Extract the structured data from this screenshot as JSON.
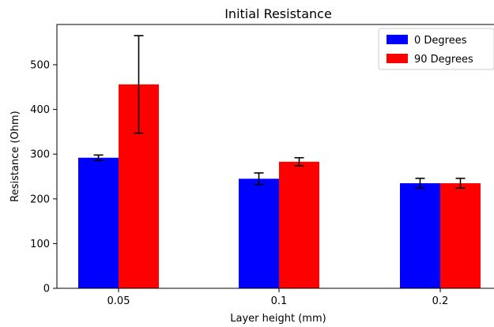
{
  "chart_data": {
    "type": "bar",
    "title": "Initial Resistance",
    "xlabel": "Layer height (mm)",
    "ylabel": "Resistance (Ohm)",
    "categories": [
      "0.05",
      "0.1",
      "0.2"
    ],
    "series": [
      {
        "name": "0 Degrees",
        "color": "#0000ff",
        "values": [
          292,
          245,
          235
        ],
        "errors": [
          6,
          13,
          11
        ]
      },
      {
        "name": "90 Degrees",
        "color": "#ff0000",
        "values": [
          456,
          283,
          235
        ],
        "errors": [
          109,
          9,
          11
        ]
      }
    ],
    "ylim": [
      0,
      590
    ],
    "yticks": [
      0,
      100,
      200,
      300,
      400,
      500
    ],
    "grid": false,
    "legend_position": "top-right"
  }
}
